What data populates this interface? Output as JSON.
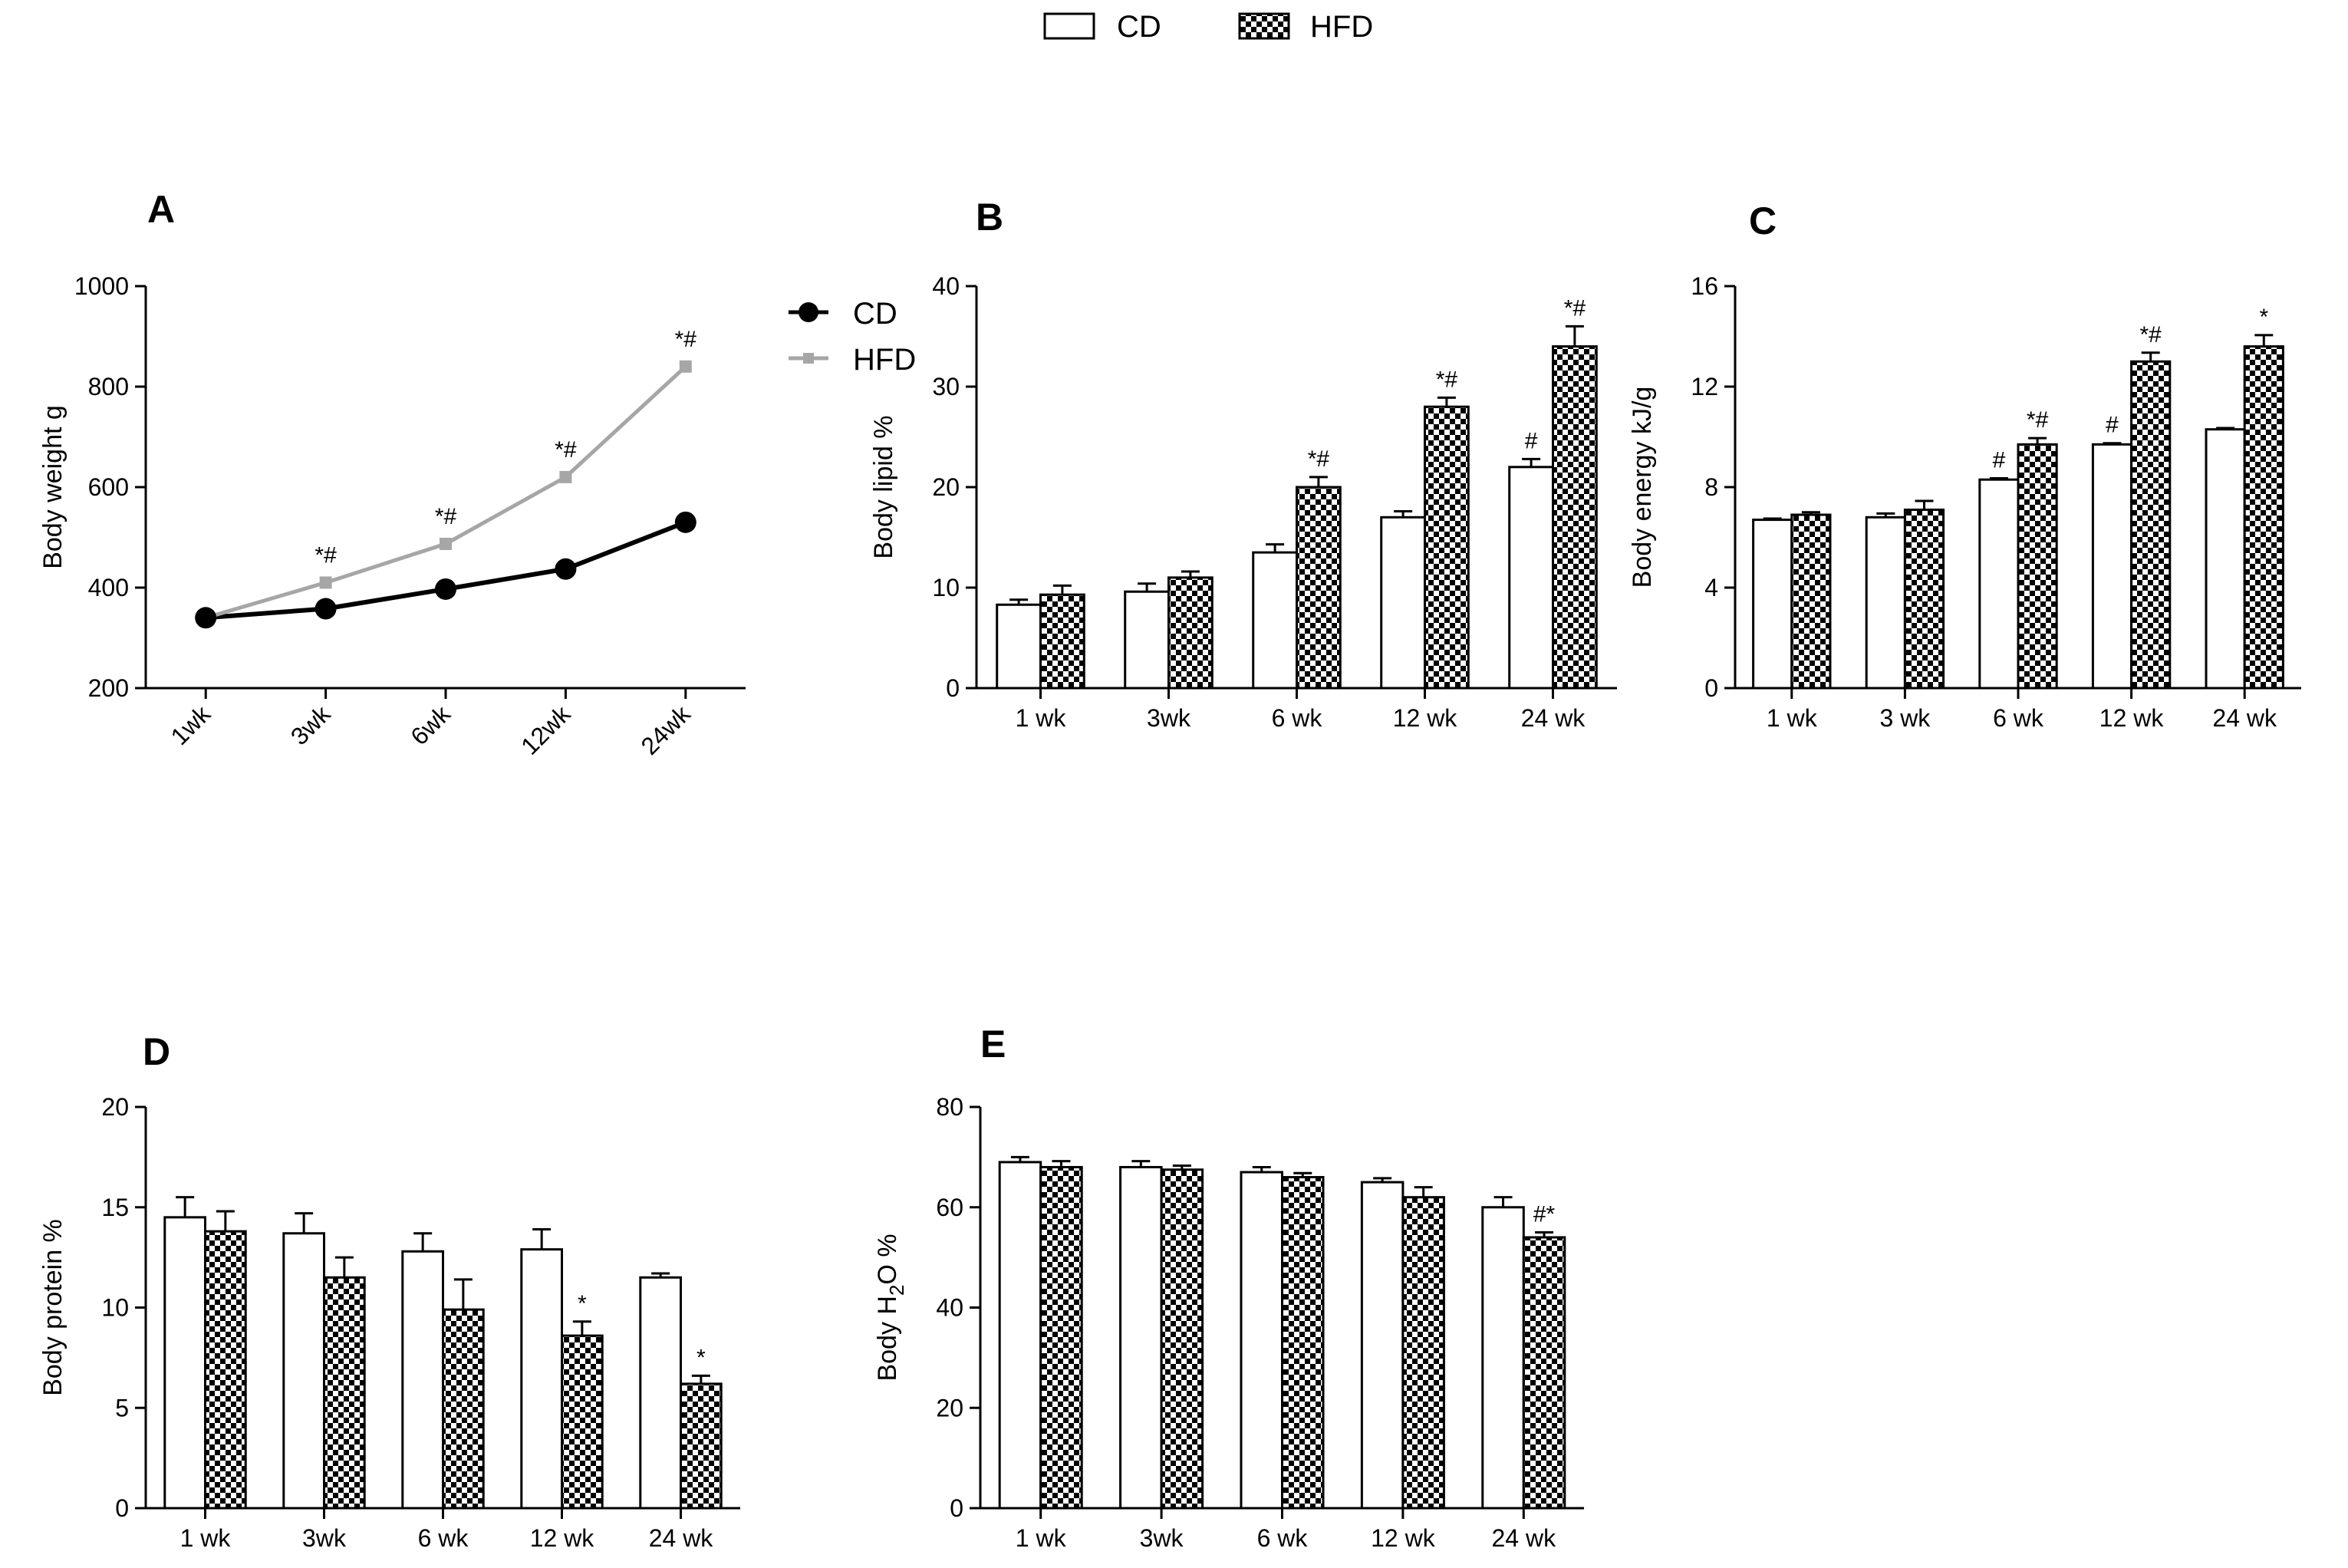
{
  "legend_top": {
    "items": [
      {
        "label": "CD",
        "pattern": "white"
      },
      {
        "label": "HFD",
        "pattern": "checker"
      }
    ]
  },
  "colors": {
    "cd_line": "#000000",
    "hfd_line": "#a6a6a6",
    "axis": "#000000"
  },
  "chart_data": [
    {
      "panel": "A",
      "type": "line",
      "ylabel": "Body weight  g",
      "categories": [
        "1wk",
        "3wk",
        "6wk",
        "12wk",
        "24wk"
      ],
      "ylim": [
        200,
        1000
      ],
      "yticks": [
        200,
        400,
        600,
        800,
        1000
      ],
      "series": [
        {
          "name": "CD",
          "values": [
            340,
            358,
            397,
            437,
            530
          ],
          "marker": "circle"
        },
        {
          "name": "HFD",
          "values": [
            340,
            410,
            487,
            620,
            840
          ],
          "marker": "square"
        }
      ],
      "annotations": [
        "",
        "*#",
        "*#",
        "*#",
        "*#"
      ]
    },
    {
      "panel": "B",
      "type": "bar",
      "ylabel": "Body lipid %",
      "categories": [
        "1 wk",
        "3wk",
        "6 wk",
        "12 wk",
        "24 wk"
      ],
      "ylim": [
        0,
        40
      ],
      "yticks": [
        0,
        10,
        20,
        30,
        40
      ],
      "series": [
        {
          "name": "CD",
          "values": [
            8.3,
            9.6,
            13.5,
            17.0,
            22.0
          ],
          "errors": [
            0.5,
            0.8,
            0.8,
            0.6,
            0.8
          ]
        },
        {
          "name": "HFD",
          "values": [
            9.3,
            11.0,
            20.0,
            28.0,
            34.0
          ],
          "errors": [
            0.9,
            0.6,
            1.0,
            0.9,
            2.0
          ]
        }
      ],
      "annotations": {
        "CD": [
          "",
          "",
          "",
          "",
          "#"
        ],
        "HFD": [
          "",
          "",
          "*#",
          "*#",
          "*#"
        ]
      }
    },
    {
      "panel": "C",
      "type": "bar",
      "ylabel": "Body energy kJ/g",
      "categories": [
        "1 wk",
        "3 wk",
        "6 wk",
        "12 wk",
        "24 wk"
      ],
      "ylim": [
        0,
        16
      ],
      "yticks": [
        0,
        4,
        8,
        12,
        16
      ],
      "series": [
        {
          "name": "CD",
          "values": [
            6.7,
            6.8,
            8.3,
            9.7,
            10.3
          ],
          "errors": [
            0.05,
            0.15,
            0.05,
            0.05,
            0.05
          ]
        },
        {
          "name": "HFD",
          "values": [
            6.9,
            7.1,
            9.7,
            13.0,
            13.6
          ],
          "errors": [
            0.1,
            0.35,
            0.25,
            0.35,
            0.45
          ]
        }
      ],
      "annotations": {
        "CD": [
          "",
          "",
          "#",
          "#",
          ""
        ],
        "HFD": [
          "",
          "",
          "*#",
          "*#",
          "*"
        ]
      }
    },
    {
      "panel": "D",
      "type": "bar",
      "ylabel": "Body protein %",
      "categories": [
        "1 wk",
        "3wk",
        "6 wk",
        "12 wk",
        "24 wk"
      ],
      "ylim": [
        0,
        20
      ],
      "yticks": [
        0,
        5,
        10,
        15,
        20
      ],
      "series": [
        {
          "name": "CD",
          "values": [
            14.5,
            13.7,
            12.8,
            12.9,
            11.5
          ],
          "errors": [
            1.0,
            1.0,
            0.9,
            1.0,
            0.2
          ]
        },
        {
          "name": "HFD",
          "values": [
            13.8,
            11.5,
            9.9,
            8.6,
            6.2
          ],
          "errors": [
            1.0,
            1.0,
            1.5,
            0.7,
            0.4
          ]
        }
      ],
      "annotations": {
        "CD": [
          "",
          "",
          "",
          "",
          ""
        ],
        "HFD": [
          "",
          "",
          "",
          "*",
          "*"
        ]
      }
    },
    {
      "panel": "E",
      "type": "bar",
      "ylabel_prefix": "Body H",
      "ylabel_sub": "2",
      "ylabel_suffix": "O %",
      "categories": [
        "1 wk",
        "3wk",
        "6 wk",
        "12 wk",
        "24 wk"
      ],
      "ylim": [
        0,
        80
      ],
      "yticks": [
        0,
        20,
        40,
        60,
        80
      ],
      "series": [
        {
          "name": "CD",
          "values": [
            69.0,
            68.0,
            67.0,
            65.0,
            60.0
          ],
          "errors": [
            1.0,
            1.2,
            1.0,
            0.8,
            2.0
          ]
        },
        {
          "name": "HFD",
          "values": [
            68.0,
            67.5,
            66.0,
            62.0,
            54.0
          ],
          "errors": [
            1.2,
            0.8,
            0.8,
            2.0,
            1.0
          ]
        }
      ],
      "annotations": {
        "CD": [
          "",
          "",
          "",
          "",
          ""
        ],
        "HFD": [
          "",
          "",
          "",
          "",
          "#*"
        ]
      }
    }
  ]
}
